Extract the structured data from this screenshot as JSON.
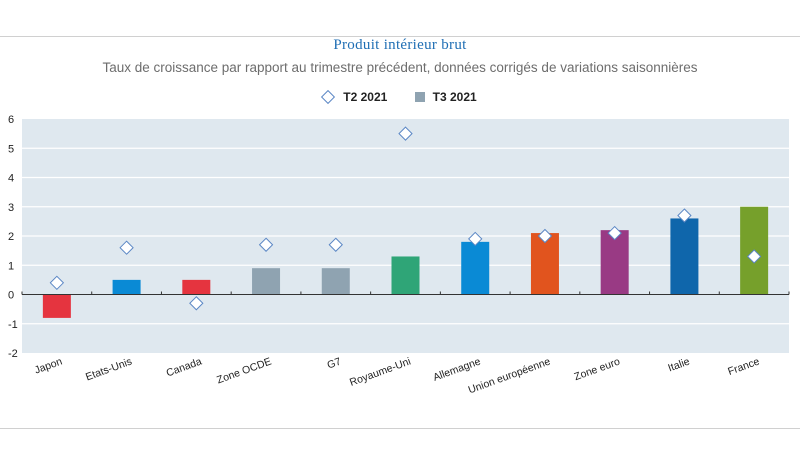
{
  "chart_data": {
    "type": "bar",
    "title": "Produit intérieur brut",
    "subtitle": "Taux de croissance par rapport au trimestre précédent, données corrigés de variations saisonnières",
    "xlabel": "",
    "ylabel": "",
    "ylim": [
      -2,
      6
    ],
    "yticks": [
      6,
      5,
      4,
      3,
      2,
      1,
      0,
      -1,
      -2
    ],
    "grid": true,
    "legend_position": "top-center",
    "legend": [
      {
        "name": "T2 2021",
        "marker": "diamond-outline"
      },
      {
        "name": "T3 2021",
        "marker": "square"
      }
    ],
    "categories": [
      "Japon",
      "Etats-Unis",
      "Canada",
      "Zone OCDE",
      "G7",
      "Royaume-Uni",
      "Allemagne",
      "Union européenne",
      "Zone euro",
      "Italie",
      "France"
    ],
    "series": [
      {
        "name": "T3 2021",
        "kind": "bar",
        "values": [
          -0.8,
          0.5,
          0.5,
          0.9,
          0.9,
          1.3,
          1.8,
          2.1,
          2.2,
          2.6,
          3.0
        ]
      },
      {
        "name": "T2 2021",
        "kind": "marker",
        "values": [
          0.4,
          1.6,
          -0.3,
          1.7,
          1.7,
          5.5,
          1.9,
          2.0,
          2.1,
          2.7,
          1.3
        ]
      }
    ],
    "bar_colors": [
      "#e5343f",
      "#0a8ad5",
      "#e5343f",
      "#8fa3b1",
      "#8fa3b1",
      "#2fa577",
      "#0a8ad5",
      "#e1541e",
      "#993a84",
      "#0f66ab",
      "#76a02b"
    ]
  },
  "colors": {
    "title": "#1f6eb4",
    "plot_background": "#dfe8ef",
    "diamond_stroke": "#5b87c5",
    "legend_square": "#8fa3b1"
  }
}
